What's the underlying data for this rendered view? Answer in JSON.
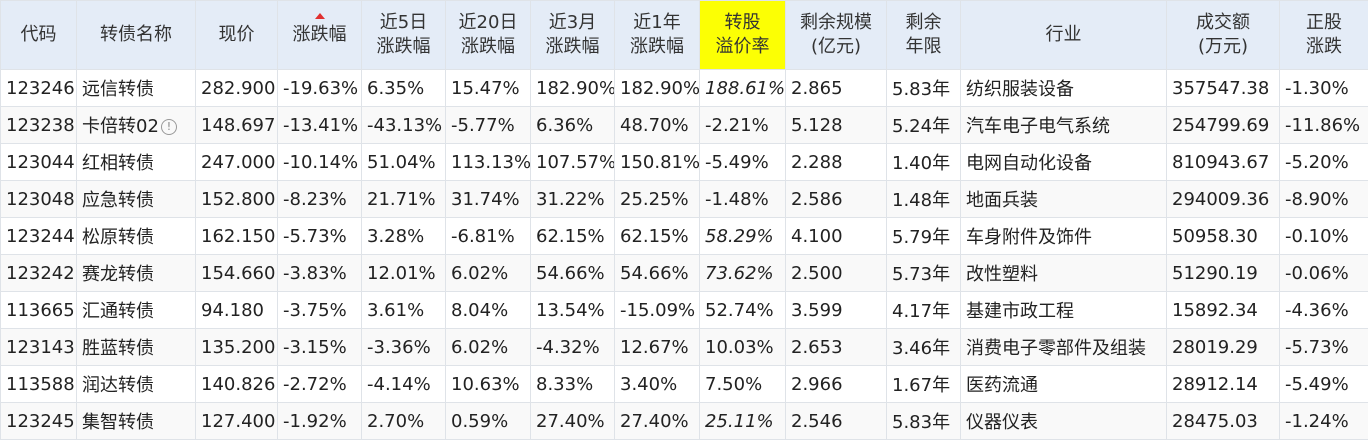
{
  "header": {
    "code": "代码",
    "name": "转债名称",
    "price": "现价",
    "change": "涨跌幅",
    "d5_line1": "近5日",
    "d5_line2": "涨跌幅",
    "d20_line1": "近20日",
    "d20_line2": "涨跌幅",
    "m3_line1": "近3月",
    "m3_line2": "涨跌幅",
    "y1_line1": "近1年",
    "y1_line2": "涨跌幅",
    "premium_line1": "转股",
    "premium_line2": "溢价率",
    "scale_line1": "剩余规模",
    "scale_line2": "(亿元)",
    "years_line1": "剩余",
    "years_line2": "年限",
    "industry": "行业",
    "volume_line1": "成交额",
    "volume_line2": "(万元)",
    "stock_line1": "正股",
    "stock_line2": "涨跌"
  },
  "colors": {
    "header_bg": "#e4ecf7",
    "highlight": "#fcff04",
    "up": "#e0191b",
    "down": "#0b8a23",
    "code": "#1f5fa8",
    "muted_italic": "#a8a8a8"
  },
  "rows": [
    {
      "code": "123246",
      "name": "远信转债",
      "warn": "",
      "price": "282.900",
      "change": "-19.63%",
      "d5": "6.35%",
      "d20": "15.47%",
      "m3": "182.90%",
      "y1": "182.90%",
      "premium": "188.61%",
      "scale": "2.865",
      "years": "5.83年",
      "industry": "纺织服装设备",
      "volume": "357547.38",
      "stock": "-1.30%"
    },
    {
      "code": "123238",
      "name": "卡倍转02",
      "warn": "!",
      "price": "148.697",
      "change": "-13.41%",
      "d5": "-43.13%",
      "d20": "-5.77%",
      "m3": "6.36%",
      "y1": "48.70%",
      "premium": "-2.21%",
      "scale": "5.128",
      "years": "5.24年",
      "industry": "汽车电子电气系统",
      "volume": "254799.69",
      "stock": "-11.86%"
    },
    {
      "code": "123044",
      "name": "红相转债",
      "warn": "",
      "price": "247.000",
      "change": "-10.14%",
      "d5": "51.04%",
      "d20": "113.13%",
      "m3": "107.57%",
      "y1": "150.81%",
      "premium": "-5.49%",
      "scale": "2.288",
      "years": "1.40年",
      "industry": "电网自动化设备",
      "volume": "810943.67",
      "stock": "-5.20%"
    },
    {
      "code": "123048",
      "name": "应急转债",
      "warn": "",
      "price": "152.800",
      "change": "-8.23%",
      "d5": "21.71%",
      "d20": "31.74%",
      "m3": "31.22%",
      "y1": "25.25%",
      "premium": "-1.48%",
      "scale": "2.586",
      "years": "1.48年",
      "industry": "地面兵装",
      "volume": "294009.36",
      "stock": "-8.90%"
    },
    {
      "code": "123244",
      "name": "松原转债",
      "warn": "",
      "price": "162.150",
      "change": "-5.73%",
      "d5": "3.28%",
      "d20": "-6.81%",
      "m3": "62.15%",
      "y1": "62.15%",
      "premium": "58.29%",
      "scale": "4.100",
      "years": "5.79年",
      "industry": "车身附件及饰件",
      "volume": "50958.30",
      "stock": "-0.10%"
    },
    {
      "code": "123242",
      "name": "赛龙转债",
      "warn": "",
      "price": "154.660",
      "change": "-3.83%",
      "d5": "12.01%",
      "d20": "6.02%",
      "m3": "54.66%",
      "y1": "54.66%",
      "premium": "73.62%",
      "scale": "2.500",
      "years": "5.73年",
      "industry": "改性塑料",
      "volume": "51290.19",
      "stock": "-0.06%"
    },
    {
      "code": "113665",
      "name": "汇通转债",
      "warn": "",
      "price": "94.180",
      "change": "-3.75%",
      "d5": "3.61%",
      "d20": "8.04%",
      "m3": "13.54%",
      "y1": "-15.09%",
      "premium": "52.74%",
      "scale": "3.599",
      "years": "4.17年",
      "industry": "基建市政工程",
      "volume": "15892.34",
      "stock": "-4.36%"
    },
    {
      "code": "123143",
      "name": "胜蓝转债",
      "warn": "",
      "price": "135.200",
      "change": "-3.15%",
      "d5": "-3.36%",
      "d20": "6.02%",
      "m3": "-4.32%",
      "y1": "12.67%",
      "premium": "10.03%",
      "scale": "2.653",
      "years": "3.46年",
      "industry": "消费电子零部件及组装",
      "volume": "28019.29",
      "stock": "-5.73%"
    },
    {
      "code": "113588",
      "name": "润达转债",
      "warn": "",
      "price": "140.826",
      "change": "-2.72%",
      "d5": "-4.14%",
      "d20": "10.63%",
      "m3": "8.33%",
      "y1": "3.40%",
      "premium": "7.50%",
      "scale": "2.966",
      "years": "1.67年",
      "industry": "医药流通",
      "volume": "28912.14",
      "stock": "-5.49%"
    },
    {
      "code": "123245",
      "name": "集智转债",
      "warn": "",
      "price": "127.400",
      "change": "-1.92%",
      "d5": "2.70%",
      "d20": "0.59%",
      "m3": "27.40%",
      "y1": "27.40%",
      "premium": "25.11%",
      "scale": "2.546",
      "years": "5.83年",
      "industry": "仪器仪表",
      "volume": "28475.03",
      "stock": "-1.24%"
    }
  ],
  "premium_style": [
    "italic",
    "neu",
    "neu",
    "neu",
    "italic",
    "italic",
    "neu",
    "neu",
    "neu",
    "italic"
  ]
}
